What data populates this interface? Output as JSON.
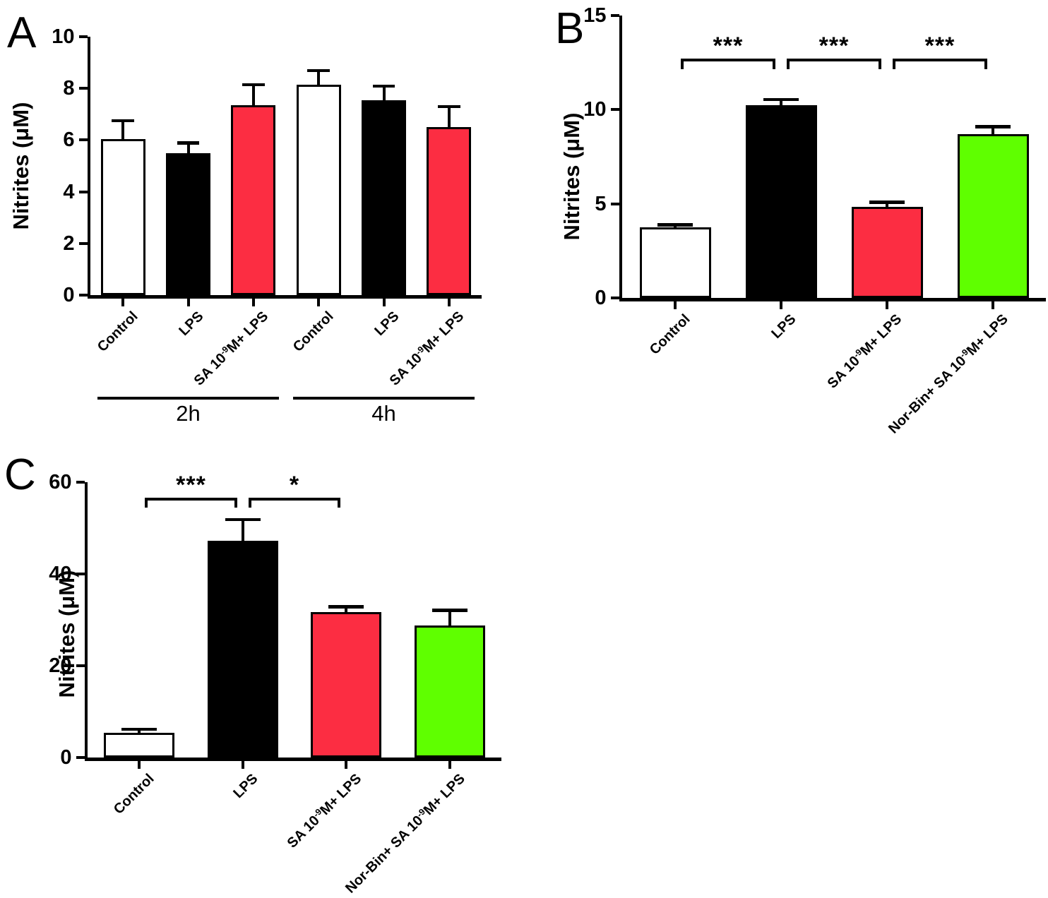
{
  "chart_data": [
    {
      "type": "bar",
      "panel": "A",
      "title": "",
      "xlabel": "",
      "ylabel": "Nitrites (μM)",
      "ylim": [
        0,
        10
      ],
      "yticks": [
        "0",
        "2",
        "4",
        "6",
        "8",
        "10"
      ],
      "categories": [
        "Control",
        "LPS",
        "SA 10⁻⁹M+ LPS",
        "Control",
        "LPS",
        "SA 10⁻⁹M+ LPS"
      ],
      "xlabels": [
        {
          "pre": "Control",
          "sup": "",
          "post": ""
        },
        {
          "pre": "LPS",
          "sup": "",
          "post": ""
        },
        {
          "pre": "SA 10",
          "sup": "-9",
          "post": "M+ LPS"
        },
        {
          "pre": "Control",
          "sup": "",
          "post": ""
        },
        {
          "pre": "LPS",
          "sup": "",
          "post": ""
        },
        {
          "pre": "SA 10",
          "sup": "-9",
          "post": "M+ LPS"
        }
      ],
      "values": [
        6.05,
        5.5,
        7.35,
        8.15,
        7.55,
        6.5
      ],
      "errors": [
        0.7,
        0.4,
        0.8,
        0.55,
        0.55,
        0.8
      ],
      "bar_colors": [
        "#FFFFFF",
        "#000000",
        "#FC2D42",
        "#FFFFFF",
        "#000000",
        "#FC2D42"
      ],
      "group_labels": [
        "2h",
        "4h"
      ],
      "significance": [],
      "grid": "off",
      "legend": "none"
    },
    {
      "type": "bar",
      "panel": "B",
      "title": "",
      "xlabel": "",
      "ylabel": "Nitrites (μM)",
      "ylim": [
        0,
        15
      ],
      "yticks": [
        "0",
        "5",
        "10",
        "15"
      ],
      "categories": [
        "Control",
        "LPS",
        "SA 10⁻⁹M+ LPS",
        "Nor-Bin+ SA 10⁻⁹M+ LPS"
      ],
      "xlabels": [
        {
          "pre": "Control",
          "sup": "",
          "post": ""
        },
        {
          "pre": "LPS",
          "sup": "",
          "post": ""
        },
        {
          "pre": "SA 10",
          "sup": "-9",
          "post": "M+ LPS"
        },
        {
          "pre": "Nor-Bin+ SA 10",
          "sup": "-9",
          "post": "M+ LPS"
        }
      ],
      "values": [
        3.75,
        10.25,
        4.85,
        8.7
      ],
      "errors": [
        0.15,
        0.3,
        0.25,
        0.4
      ],
      "bar_colors": [
        "#FFFFFF",
        "#000000",
        "#FC2D42",
        "#5FFF00"
      ],
      "group_labels": [],
      "significance": [
        {
          "from": 0,
          "to": 1,
          "label": "***"
        },
        {
          "from": 1,
          "to": 2,
          "label": "***"
        },
        {
          "from": 2,
          "to": 3,
          "label": "***"
        }
      ],
      "grid": "off",
      "legend": "none"
    },
    {
      "type": "bar",
      "panel": "C",
      "title": "",
      "xlabel": "",
      "ylabel": "Nitrites (μM)",
      "ylim": [
        0,
        60
      ],
      "yticks": [
        "0",
        "20",
        "40",
        "60"
      ],
      "categories": [
        "Control",
        "LPS",
        "SA 10⁻⁹M+ LPS",
        "Nor-Bin+ SA 10⁻⁹M+ LPS"
      ],
      "xlabels": [
        {
          "pre": "Control",
          "sup": "",
          "post": ""
        },
        {
          "pre": "LPS",
          "sup": "",
          "post": ""
        },
        {
          "pre": "SA 10",
          "sup": "-9",
          "post": "M+ LPS"
        },
        {
          "pre": "Nor-Bin+ SA 10",
          "sup": "-9",
          "post": "M+ LPS"
        }
      ],
      "values": [
        5.4,
        47.2,
        31.7,
        28.8
      ],
      "errors": [
        0.8,
        4.7,
        1.2,
        3.3
      ],
      "bar_colors": [
        "#FFFFFF",
        "#000000",
        "#FC2D42",
        "#5FFF00"
      ],
      "group_labels": [],
      "significance": [
        {
          "from": 0,
          "to": 1,
          "label": "***"
        },
        {
          "from": 1,
          "to": 2,
          "label": "*"
        }
      ],
      "grid": "off",
      "legend": "none"
    }
  ],
  "colors": {
    "bar_white": "#FFFFFF",
    "bar_black": "#000000",
    "bar_red": "#FC2D42",
    "bar_green": "#5FFF00",
    "axis": "#000000",
    "background": "#FFFFFF"
  }
}
